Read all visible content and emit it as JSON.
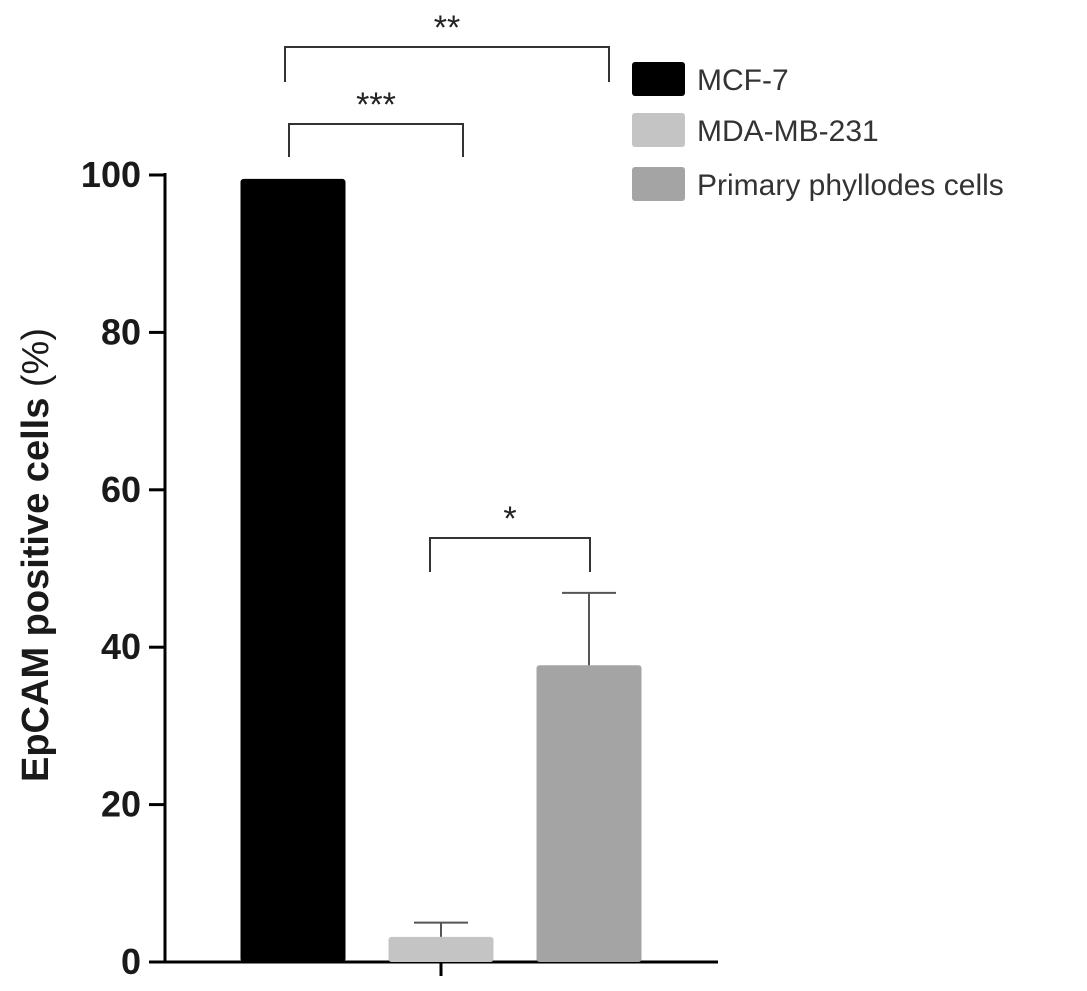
{
  "chart_data": {
    "type": "bar",
    "title": "",
    "xlabel": "",
    "ylabel": "EpCAM positive cells",
    "ylabel_unit": "(%)",
    "ylim": [
      0,
      100
    ],
    "yticks": [
      0,
      20,
      40,
      60,
      80,
      100
    ],
    "grid": false,
    "legend_position": "top-right",
    "series": [
      {
        "name": "MCF-7",
        "value": 99.5,
        "error": 0,
        "color": "#000000"
      },
      {
        "name": "MDA-MB-231",
        "value": 3.2,
        "error": 1.8,
        "color": "#c4c4c4"
      },
      {
        "name": "Primary phyllodes cells",
        "value": 37.7,
        "error": 9.2,
        "color": "#a4a4a4"
      }
    ],
    "significance": [
      {
        "from": 0,
        "to": 2,
        "label": "**"
      },
      {
        "from": 0,
        "to": 1,
        "label": "***"
      },
      {
        "from": 1,
        "to": 2,
        "label": "*"
      }
    ]
  }
}
